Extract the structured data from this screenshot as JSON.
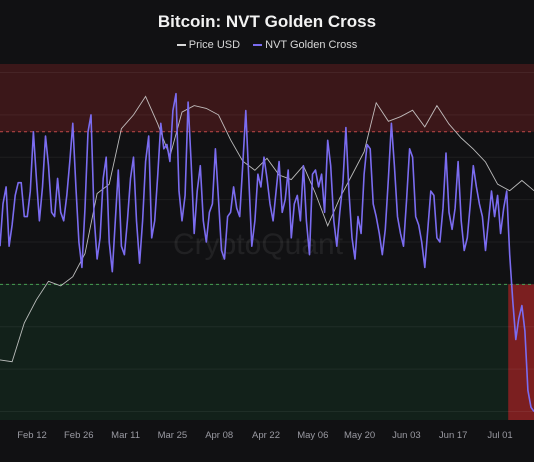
{
  "chart_data": {
    "type": "line",
    "title": "Bitcoin: NVT Golden Cross",
    "watermark": "CryptoQuant",
    "legend_position": "top-center",
    "grid": true,
    "x_ticks": [
      "Feb 12",
      "Feb 26",
      "Mar 11",
      "Mar 25",
      "Apr 08",
      "Apr 22",
      "May 06",
      "May 20",
      "Jun 03",
      "Jun 17",
      "Jul 01"
    ],
    "colors": {
      "price": "#d9d9d9",
      "nvt": "#7b6cf0",
      "upper_band": "#4a1a1c",
      "lower_band": "#13241c",
      "upper_line": "#c04848",
      "lower_line": "#3d9a4a",
      "alert": "#8e1f22"
    },
    "series": [
      {
        "name": "Price USD",
        "key": "price",
        "points": [
          [
            0,
            43000
          ],
          [
            4,
            42800
          ],
          [
            8,
            47000
          ],
          [
            12,
            49500
          ],
          [
            16,
            51500
          ],
          [
            20,
            51000
          ],
          [
            24,
            52000
          ],
          [
            28,
            54500
          ],
          [
            32,
            61000
          ],
          [
            36,
            62000
          ],
          [
            40,
            68000
          ],
          [
            44,
            69500
          ],
          [
            48,
            71500
          ],
          [
            52,
            68500
          ],
          [
            56,
            65000
          ],
          [
            60,
            69800
          ],
          [
            64,
            70500
          ],
          [
            68,
            70200
          ],
          [
            72,
            69500
          ],
          [
            76,
            66800
          ],
          [
            80,
            64500
          ],
          [
            84,
            63500
          ],
          [
            88,
            64800
          ],
          [
            92,
            63000
          ],
          [
            96,
            62500
          ],
          [
            100,
            64000
          ],
          [
            104,
            61000
          ],
          [
            108,
            57500
          ],
          [
            112,
            60500
          ],
          [
            116,
            63000
          ],
          [
            120,
            65500
          ],
          [
            124,
            70800
          ],
          [
            128,
            68800
          ],
          [
            132,
            69300
          ],
          [
            136,
            70000
          ],
          [
            140,
            68200
          ],
          [
            144,
            70500
          ],
          [
            148,
            68500
          ],
          [
            152,
            67000
          ],
          [
            156,
            65800
          ],
          [
            160,
            64400
          ],
          [
            164,
            62000
          ],
          [
            168,
            61300
          ],
          [
            172,
            62400
          ],
          [
            176,
            61300
          ]
        ]
      },
      {
        "name": "NVT Golden Cross",
        "key": "nvt",
        "points": [
          [
            0,
            0.9
          ],
          [
            1,
            1.9
          ],
          [
            2,
            2.3
          ],
          [
            3,
            0.9
          ],
          [
            4,
            1.4
          ],
          [
            5,
            2.1
          ],
          [
            6,
            2.4
          ],
          [
            7,
            2.4
          ],
          [
            8,
            1.6
          ],
          [
            9,
            1.6
          ],
          [
            10,
            2.2
          ],
          [
            11,
            3.6
          ],
          [
            12,
            2.5
          ],
          [
            13,
            1.5
          ],
          [
            14,
            2.3
          ],
          [
            15,
            3.5
          ],
          [
            16,
            2.8
          ],
          [
            17,
            1.7
          ],
          [
            18,
            1.6
          ],
          [
            19,
            2.5
          ],
          [
            20,
            1.7
          ],
          [
            21,
            1.5
          ],
          [
            22,
            2.1
          ],
          [
            23,
            2.9
          ],
          [
            24,
            3.8
          ],
          [
            25,
            2.3
          ],
          [
            26,
            1.0
          ],
          [
            27,
            0.4
          ],
          [
            28,
            1.8
          ],
          [
            29,
            3.6
          ],
          [
            30,
            4.0
          ],
          [
            31,
            1.6
          ],
          [
            32,
            0.6
          ],
          [
            33,
            1.1
          ],
          [
            34,
            2.5
          ],
          [
            35,
            3.0
          ],
          [
            36,
            1.0
          ],
          [
            37,
            0.3
          ],
          [
            38,
            1.5
          ],
          [
            39,
            2.7
          ],
          [
            40,
            0.9
          ],
          [
            41,
            0.7
          ],
          [
            42,
            1.5
          ],
          [
            43,
            2.5
          ],
          [
            44,
            3.0
          ],
          [
            45,
            1.5
          ],
          [
            46,
            0.5
          ],
          [
            47,
            1.5
          ],
          [
            48,
            2.9
          ],
          [
            49,
            3.5
          ],
          [
            50,
            1.1
          ],
          [
            51,
            1.5
          ],
          [
            52,
            2.6
          ],
          [
            53,
            3.8
          ],
          [
            54,
            3.2
          ],
          [
            55,
            3.3
          ],
          [
            56,
            2.9
          ],
          [
            57,
            4.1
          ],
          [
            58,
            4.5
          ],
          [
            59,
            2.2
          ],
          [
            60,
            1.5
          ],
          [
            61,
            2.1
          ],
          [
            62,
            4.3
          ],
          [
            63,
            2.9
          ],
          [
            64,
            1.2
          ],
          [
            65,
            2.2
          ],
          [
            66,
            2.8
          ],
          [
            67,
            1.5
          ],
          [
            68,
            1.0
          ],
          [
            69,
            1.7
          ],
          [
            70,
            1.9
          ],
          [
            71,
            3.2
          ],
          [
            72,
            2.0
          ],
          [
            73,
            0.8
          ],
          [
            74,
            0.6
          ],
          [
            75,
            1.6
          ],
          [
            76,
            1.7
          ],
          [
            77,
            2.3
          ],
          [
            78,
            1.8
          ],
          [
            79,
            1.6
          ],
          [
            80,
            2.8
          ],
          [
            81,
            4.1
          ],
          [
            82,
            2.5
          ],
          [
            83,
            0.9
          ],
          [
            84,
            1.5
          ],
          [
            85,
            2.6
          ],
          [
            86,
            2.3
          ],
          [
            87,
            3.0
          ],
          [
            88,
            2.5
          ],
          [
            89,
            1.9
          ],
          [
            90,
            1.5
          ],
          [
            91,
            2.2
          ],
          [
            92,
            2.9
          ],
          [
            93,
            1.7
          ],
          [
            94,
            2.0
          ],
          [
            95,
            2.7
          ],
          [
            96,
            1.1
          ],
          [
            97,
            1.9
          ],
          [
            98,
            2.1
          ],
          [
            99,
            1.5
          ],
          [
            100,
            2.8
          ],
          [
            101,
            1.5
          ],
          [
            102,
            0.7
          ],
          [
            103,
            2.6
          ],
          [
            104,
            2.7
          ],
          [
            105,
            2.3
          ],
          [
            106,
            2.6
          ],
          [
            107,
            1.7
          ],
          [
            108,
            3.4
          ],
          [
            109,
            2.8
          ],
          [
            110,
            1.5
          ],
          [
            111,
            0.9
          ],
          [
            112,
            1.7
          ],
          [
            113,
            2.4
          ],
          [
            114,
            3.7
          ],
          [
            115,
            2.2
          ],
          [
            116,
            1.1
          ],
          [
            117,
            0.6
          ],
          [
            118,
            1.6
          ],
          [
            119,
            1.2
          ],
          [
            120,
            2.6
          ],
          [
            121,
            3.3
          ],
          [
            122,
            3.2
          ],
          [
            123,
            1.9
          ],
          [
            124,
            1.6
          ],
          [
            125,
            1.2
          ],
          [
            126,
            0.7
          ],
          [
            127,
            1.3
          ],
          [
            128,
            2.5
          ],
          [
            129,
            3.8
          ],
          [
            130,
            2.8
          ],
          [
            131,
            1.6
          ],
          [
            132,
            1.2
          ],
          [
            133,
            0.9
          ],
          [
            134,
            2.0
          ],
          [
            135,
            3.2
          ],
          [
            136,
            3.0
          ],
          [
            137,
            1.6
          ],
          [
            138,
            1.4
          ],
          [
            139,
            1.0
          ],
          [
            140,
            0.4
          ],
          [
            141,
            1.3
          ],
          [
            142,
            2.2
          ],
          [
            143,
            2.1
          ],
          [
            144,
            1.1
          ],
          [
            145,
            1.0
          ],
          [
            146,
            1.8
          ],
          [
            147,
            3.1
          ],
          [
            148,
            1.7
          ],
          [
            149,
            1.3
          ],
          [
            150,
            1.8
          ],
          [
            151,
            2.9
          ],
          [
            152,
            1.5
          ],
          [
            153,
            0.8
          ],
          [
            154,
            1.1
          ],
          [
            155,
            1.9
          ],
          [
            156,
            2.8
          ],
          [
            157,
            2.3
          ],
          [
            158,
            1.9
          ],
          [
            159,
            1.6
          ],
          [
            160,
            0.8
          ],
          [
            161,
            1.5
          ],
          [
            162,
            2.2
          ],
          [
            163,
            1.6
          ],
          [
            164,
            2.1
          ],
          [
            165,
            1.2
          ],
          [
            166,
            1.8
          ],
          [
            167,
            2.2
          ],
          [
            168,
            0.7
          ],
          [
            169,
            -0.4
          ],
          [
            170,
            -1.3
          ],
          [
            171,
            -0.8
          ],
          [
            172,
            -0.5
          ],
          [
            173,
            -1.1
          ],
          [
            174,
            -2.5
          ],
          [
            175,
            -2.9
          ],
          [
            176,
            -3.0
          ]
        ]
      }
    ],
    "price_range": [
      36500,
      75000
    ],
    "nvt_range": [
      -3.2,
      5.2
    ],
    "x_range": [
      0,
      176
    ],
    "bands": {
      "upper": [
        3.6,
        5.2
      ],
      "lower": [
        -3.2,
        0.0
      ]
    },
    "alert_region_x": [
      167.5,
      176
    ]
  }
}
